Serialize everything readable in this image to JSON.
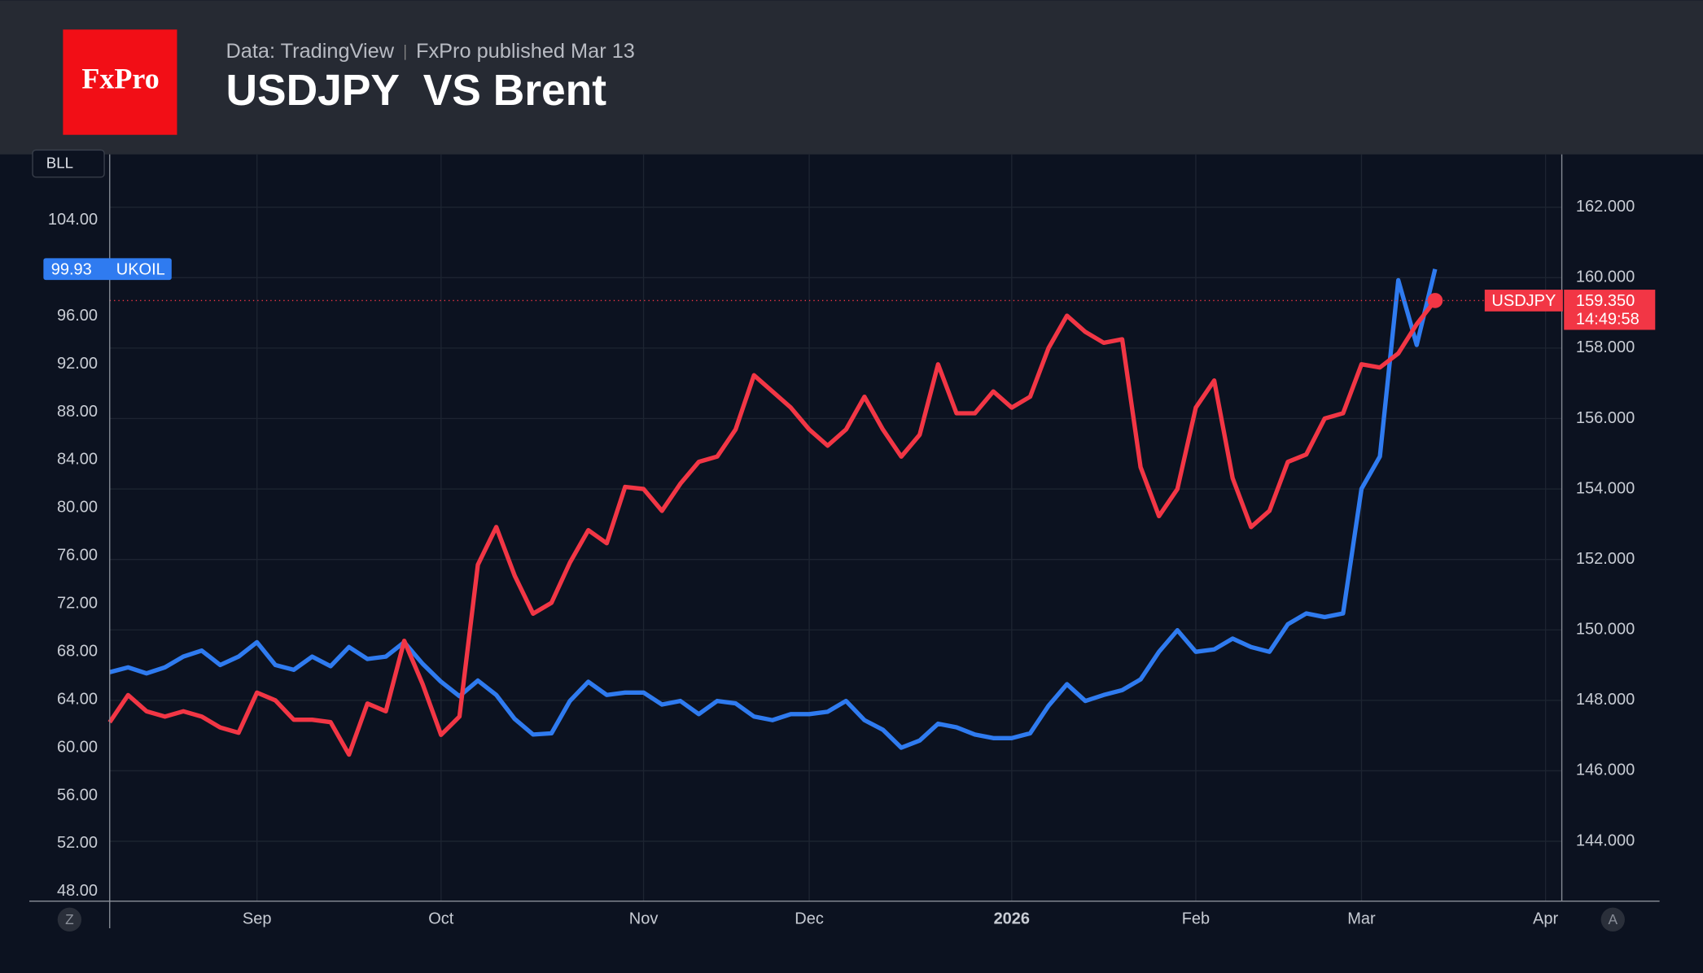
{
  "header": {
    "logo": "FxPro",
    "source": "Data: TradingView",
    "published": "FxPro published Mar 13",
    "title": "USDJPY  VS Brent"
  },
  "toolbar": {
    "symbol_button": "BLL",
    "left_button": "Z",
    "right_button": "A"
  },
  "chart_data": {
    "type": "line",
    "categories": [
      null,
      null,
      null,
      null,
      null,
      null,
      null,
      null,
      "Sep",
      null,
      null,
      null,
      null,
      null,
      null,
      null,
      null,
      null,
      "Oct",
      null,
      null,
      null,
      null,
      null,
      null,
      null,
      null,
      null,
      null,
      "Nov",
      null,
      null,
      null,
      null,
      null,
      null,
      null,
      null,
      "Dec",
      null,
      null,
      null,
      null,
      null,
      null,
      null,
      null,
      null,
      null,
      "2026",
      null,
      null,
      null,
      null,
      null,
      null,
      null,
      null,
      null,
      "Feb",
      null,
      null,
      null,
      null,
      null,
      null,
      null,
      null,
      "Mar",
      null,
      null,
      null,
      null,
      null,
      null,
      null,
      null,
      null,
      "Apr",
      null
    ],
    "series": [
      {
        "name": "UKOIL",
        "color": "#2f7bf0",
        "axis": "y",
        "last_label": "99.93",
        "values": [
          66.3,
          66.7,
          66.2,
          66.7,
          67.6,
          68.1,
          66.9,
          67.6,
          68.8,
          66.9,
          66.5,
          67.6,
          66.8,
          68.4,
          67.4,
          67.6,
          68.8,
          67.0,
          65.5,
          64.3,
          65.6,
          64.4,
          62.4,
          61.1,
          61.2,
          63.9,
          65.5,
          64.4,
          64.6,
          64.6,
          63.6,
          63.9,
          62.8,
          63.9,
          63.7,
          62.6,
          62.3,
          62.8,
          62.8,
          63.0,
          63.9,
          62.3,
          61.5,
          60.0,
          60.6,
          62.0,
          61.7,
          61.1,
          60.8,
          60.8,
          61.2,
          63.5,
          65.3,
          63.9,
          64.4,
          64.8,
          65.7,
          68.0,
          69.8,
          68.0,
          68.2,
          69.1,
          68.4,
          68.0,
          70.3,
          71.2,
          70.9,
          71.2,
          81.6,
          84.3,
          99.0,
          93.6,
          99.93,
          null,
          null,
          null,
          null,
          null,
          null,
          null
        ]
      },
      {
        "name": "USDJPY",
        "color": "#f23645",
        "axis": "y2",
        "last_label": "159.350",
        "countdown": "14:49:58",
        "values": [
          147.38,
          148.15,
          147.69,
          147.54,
          147.69,
          147.54,
          147.23,
          147.08,
          148.22,
          148.0,
          147.45,
          147.45,
          147.38,
          146.46,
          147.91,
          147.69,
          149.69,
          148.46,
          147.02,
          147.54,
          151.85,
          152.92,
          151.54,
          150.46,
          150.77,
          151.91,
          152.83,
          152.46,
          154.06,
          154.0,
          153.38,
          154.15,
          154.77,
          154.92,
          155.69,
          157.23,
          156.77,
          156.31,
          155.69,
          155.23,
          155.69,
          156.62,
          155.69,
          154.92,
          155.54,
          157.54,
          156.15,
          156.15,
          156.77,
          156.31,
          156.62,
          158.0,
          158.92,
          158.46,
          158.15,
          158.25,
          154.62,
          153.23,
          154.0,
          156.31,
          157.08,
          154.31,
          152.92,
          153.38,
          154.77,
          154.98,
          156.0,
          156.15,
          157.54,
          157.45,
          157.85,
          158.68,
          159.35,
          null,
          null,
          null,
          null,
          null,
          null,
          null
        ]
      }
    ],
    "ylim": [
      47.2,
      109.5
    ],
    "yticks": [
      {
        "value": 48,
        "label": "48.00"
      },
      {
        "value": 52,
        "label": "52.00"
      },
      {
        "value": 56,
        "label": "56.00"
      },
      {
        "value": 60,
        "label": "60.00"
      },
      {
        "value": 64,
        "label": "64.00"
      },
      {
        "value": 68,
        "label": "68.00"
      },
      {
        "value": 72,
        "label": "72.00"
      },
      {
        "value": 76,
        "label": "76.00"
      },
      {
        "value": 80,
        "label": "80.00"
      },
      {
        "value": 84,
        "label": "84.00"
      },
      {
        "value": 88,
        "label": "88.00"
      },
      {
        "value": 92,
        "label": "92.00"
      },
      {
        "value": 96,
        "label": "96.00"
      },
      {
        "value": 104,
        "label": "104.00"
      }
    ],
    "y2lim": [
      142.3,
      163.5
    ],
    "y2ticks": [
      {
        "value": 144,
        "label": "144.000"
      },
      {
        "value": 146,
        "label": "146.000"
      },
      {
        "value": 148,
        "label": "148.000"
      },
      {
        "value": 150,
        "label": "150.000"
      },
      {
        "value": 152,
        "label": "152.000"
      },
      {
        "value": 154,
        "label": "154.000"
      },
      {
        "value": 156,
        "label": "156.000"
      },
      {
        "value": 158,
        "label": "158.000"
      },
      {
        "value": 160,
        "label": "160.000"
      },
      {
        "value": 162,
        "label": "162.000"
      }
    ],
    "grid": true
  }
}
